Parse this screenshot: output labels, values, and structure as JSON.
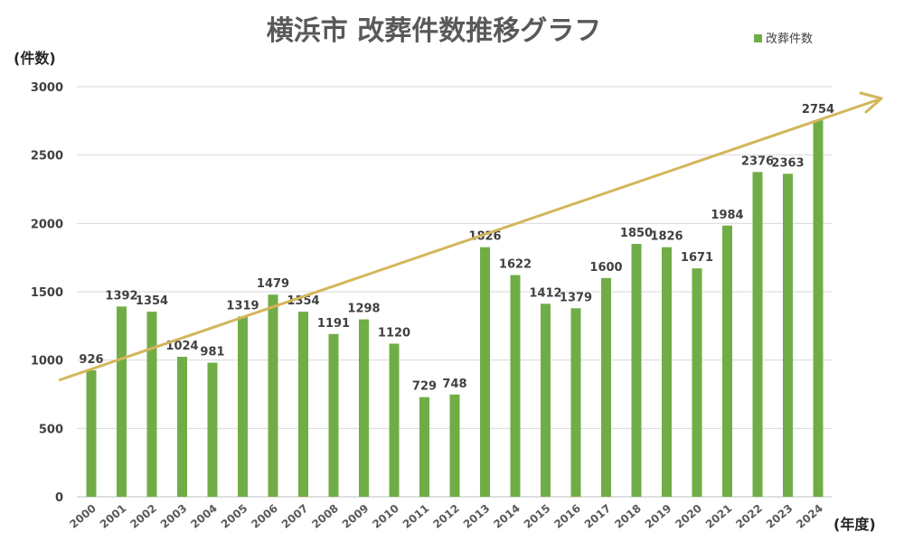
{
  "chart_data": {
    "type": "bar",
    "title": "横浜市 改葬件数推移グラフ",
    "ylabel": "(件数)",
    "xlabel": "(年度)",
    "legend": {
      "label": "改葬件数",
      "placement": "top-right"
    },
    "ylim": [
      0,
      3000
    ],
    "yticks": [
      0,
      500,
      1000,
      1500,
      2000,
      2500,
      3000
    ],
    "grid": true,
    "bar_color": "#70AD47",
    "trend_arrow_color": "#D4B65A",
    "categories": [
      "2000",
      "2001",
      "2002",
      "2003",
      "2004",
      "2005",
      "2006",
      "2007",
      "2008",
      "2009",
      "2010",
      "2011",
      "2012",
      "2013",
      "2014",
      "2015",
      "2016",
      "2017",
      "2018",
      "2019",
      "2020",
      "2021",
      "2022",
      "2023",
      "2024"
    ],
    "series": [
      {
        "name": "改葬件数",
        "values": [
          926,
          1392,
          1354,
          1024,
          981,
          1319,
          1479,
          1354,
          1191,
          1298,
          1120,
          729,
          748,
          1826,
          1622,
          1412,
          1379,
          1600,
          1850,
          1826,
          1671,
          1984,
          2376,
          2363,
          2754
        ]
      }
    ]
  }
}
